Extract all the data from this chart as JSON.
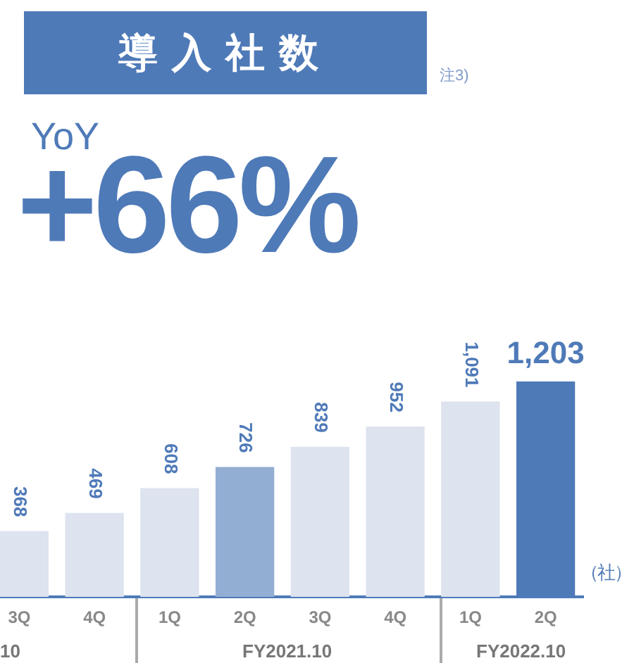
{
  "chart_data": {
    "type": "bar",
    "title": "導入社数",
    "subtitle": "YoY",
    "annotations": [
      "注3)",
      "+66%",
      "（社）",
      "10",
      "FY2021.10",
      "FY2022.10"
    ],
    "categories": [
      "3Q",
      "4Q",
      "1Q",
      "2Q",
      "3Q",
      "4Q",
      "1Q",
      "2Q"
    ],
    "values": [
      368,
      469,
      608,
      726,
      839,
      952,
      1091,
      1203
    ],
    "value_labels": [
      "368",
      "469",
      "608",
      "726",
      "839",
      "952",
      "1,091",
      "1,203"
    ],
    "colors": [
      "#dde3ef",
      "#dde3ef",
      "#dde3ef",
      "#93aed3",
      "#dde3ef",
      "#dde3ef",
      "#dde3ef",
      "#4f7ab8"
    ],
    "grid": false,
    "legend": false
  }
}
